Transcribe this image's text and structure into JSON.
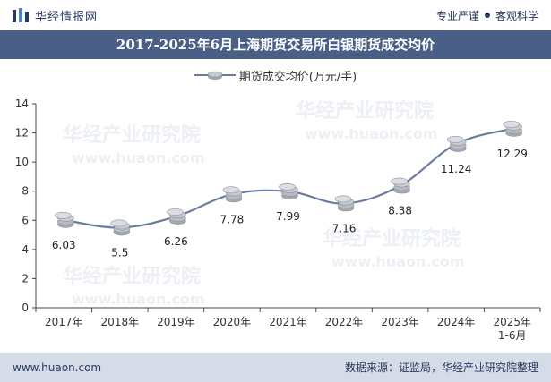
{
  "header": {
    "brand_name": "华经情报网",
    "tag_left": "专业严谨",
    "tag_right": "客观科学"
  },
  "footer": {
    "url": "www.huaon.com",
    "source": "数据来源：证监局，华经产业研究院整理"
  },
  "colors": {
    "title_band": "#4a5f86",
    "footer_band": "#d5dce8",
    "line": "#6b7d9e",
    "marker": "#b8bcc4"
  },
  "watermark": {
    "text_cn": "华经产业研究院",
    "text_url": "www.huaon.com"
  },
  "chart_data": {
    "type": "line",
    "title": "2017-2025年6月上海期货交易所白银期货成交均价",
    "categories": [
      "2017年",
      "2018年",
      "2019年",
      "2020年",
      "2021年",
      "2022年",
      "2023年",
      "2024年",
      "2025年\n1-6月"
    ],
    "series": [
      {
        "name": "期货成交均价(万元/手)",
        "values": [
          6.03,
          5.5,
          6.26,
          7.78,
          7.99,
          7.16,
          8.38,
          11.24,
          12.29
        ]
      }
    ],
    "value_labels": [
      "6.03",
      "5.5",
      "6.26",
      "7.78",
      "7.99",
      "7.16",
      "8.38",
      "11.24",
      "12.29"
    ],
    "ylim": [
      0,
      14
    ],
    "yticks": [
      0,
      2,
      4,
      6,
      8,
      10,
      12,
      14
    ],
    "grid": false,
    "legend_position": "top-center"
  }
}
